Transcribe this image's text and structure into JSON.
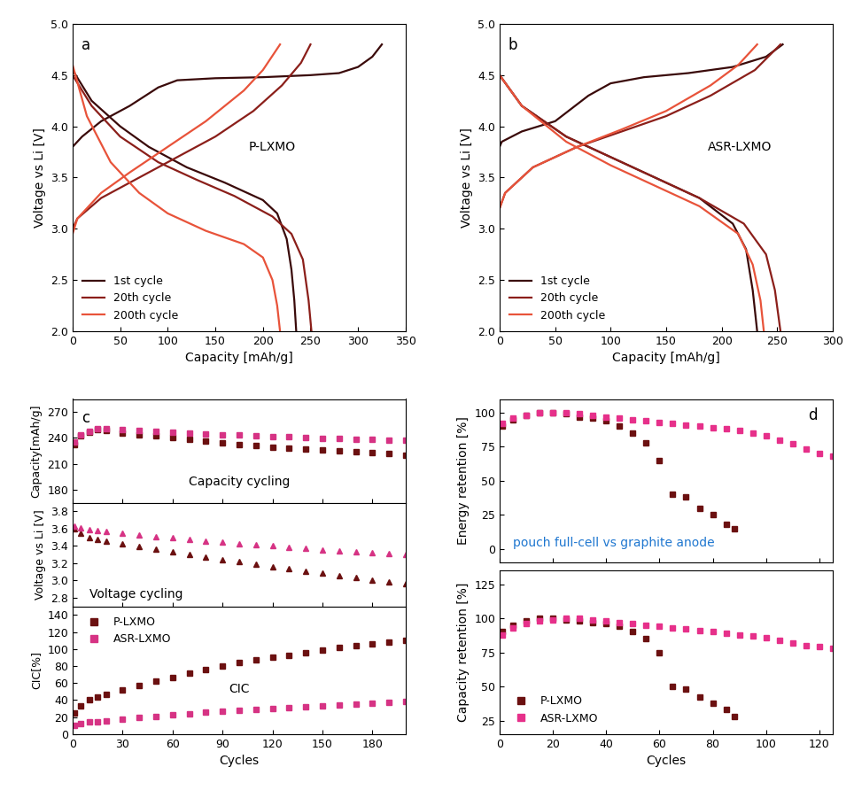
{
  "chart_data": [
    {
      "type": "line",
      "panel_label": "a",
      "annotations": [
        "P-LXMO"
      ],
      "x_label": "Capacity [mAh/g]",
      "y_label": "Voltage vs Li [V]",
      "xlim": [
        0,
        350
      ],
      "xticks": [
        0,
        50,
        100,
        150,
        200,
        250,
        300,
        350
      ],
      "ylim": [
        2.0,
        5.0
      ],
      "yticks": [
        2.0,
        2.5,
        3.0,
        3.5,
        4.0,
        4.5,
        5.0
      ],
      "legend": "lower left",
      "line_style": "solid",
      "series": [
        {
          "name": "1st cycle",
          "color": "#3a0a0a",
          "charge": {
            "x": [
              0,
              2,
              10,
              30,
              60,
              90,
              110,
              150,
              200,
              250,
              280,
              300,
              315,
              325
            ],
            "values": [
              3.8,
              3.82,
              3.9,
              4.05,
              4.2,
              4.38,
              4.45,
              4.47,
              4.48,
              4.5,
              4.52,
              4.58,
              4.68,
              4.8
            ]
          },
          "discharge": {
            "x": [
              0,
              20,
              50,
              80,
              120,
              160,
              200,
              215,
              225,
              230,
              233,
              235
            ],
            "values": [
              4.55,
              4.25,
              4.0,
              3.8,
              3.6,
              3.45,
              3.28,
              3.15,
              2.9,
              2.6,
              2.3,
              2.0
            ]
          }
        },
        {
          "name": "20th cycle",
          "color": "#8b1f1a",
          "charge": {
            "x": [
              0,
              5,
              30,
              70,
              110,
              150,
              190,
              220,
              240,
              250
            ],
            "values": [
              3.0,
              3.1,
              3.3,
              3.5,
              3.7,
              3.9,
              4.15,
              4.4,
              4.62,
              4.8
            ]
          },
          "discharge": {
            "x": [
              0,
              20,
              50,
              90,
              130,
              170,
              210,
              230,
              242,
              248,
              251
            ],
            "values": [
              4.5,
              4.2,
              3.9,
              3.65,
              3.48,
              3.32,
              3.12,
              2.95,
              2.7,
              2.3,
              2.0
            ]
          }
        },
        {
          "name": "200th cycle",
          "color": "#e8533a",
          "charge": {
            "x": [
              0,
              5,
              30,
              60,
              100,
              140,
              180,
              200,
              218
            ],
            "values": [
              2.95,
              3.1,
              3.35,
              3.55,
              3.8,
              4.05,
              4.35,
              4.55,
              4.8
            ]
          },
          "discharge": {
            "x": [
              0,
              15,
              40,
              70,
              100,
              140,
              180,
              200,
              210,
              215,
              218
            ],
            "values": [
              4.6,
              4.1,
              3.65,
              3.35,
              3.15,
              2.98,
              2.85,
              2.72,
              2.5,
              2.25,
              2.0
            ]
          }
        }
      ]
    },
    {
      "type": "line",
      "panel_label": "b",
      "annotations": [
        "ASR-LXMO"
      ],
      "x_label": "Capacity [mAh/g]",
      "y_label": "Voltage vs Li [V]",
      "xlim": [
        0,
        300
      ],
      "xticks": [
        0,
        50,
        100,
        150,
        200,
        250,
        300
      ],
      "ylim": [
        2.0,
        5.0
      ],
      "yticks": [
        2.0,
        2.5,
        3.0,
        3.5,
        4.0,
        4.5,
        5.0
      ],
      "legend": "lower left",
      "line_style": "solid",
      "series": [
        {
          "name": "1st cycle",
          "color": "#3a0a0a",
          "charge": {
            "x": [
              0,
              2,
              20,
              50,
              80,
              100,
              130,
              170,
              210,
              240,
              255
            ],
            "values": [
              3.8,
              3.85,
              3.95,
              4.05,
              4.3,
              4.42,
              4.48,
              4.52,
              4.58,
              4.68,
              4.8
            ]
          },
          "discharge": {
            "x": [
              0,
              20,
              60,
              100,
              140,
              180,
              210,
              222,
              228,
              232
            ],
            "values": [
              4.5,
              4.2,
              3.9,
              3.7,
              3.5,
              3.3,
              3.05,
              2.8,
              2.4,
              2.0
            ]
          }
        },
        {
          "name": "20th cycle",
          "color": "#8b1f1a",
          "charge": {
            "x": [
              0,
              5,
              30,
              70,
              110,
              150,
              190,
              230,
              253
            ],
            "values": [
              3.2,
              3.35,
              3.6,
              3.8,
              3.95,
              4.1,
              4.3,
              4.55,
              4.8
            ]
          },
          "discharge": {
            "x": [
              0,
              20,
              60,
              100,
              140,
              180,
              220,
              240,
              248,
              253
            ],
            "values": [
              4.5,
              4.2,
              3.9,
              3.7,
              3.5,
              3.3,
              3.05,
              2.75,
              2.4,
              2.0
            ]
          }
        },
        {
          "name": "200th cycle",
          "color": "#e8533a",
          "charge": {
            "x": [
              0,
              5,
              30,
              70,
              110,
              150,
              190,
              215,
              232
            ],
            "values": [
              3.2,
              3.35,
              3.6,
              3.8,
              3.97,
              4.15,
              4.4,
              4.6,
              4.8
            ]
          },
          "discharge": {
            "x": [
              0,
              20,
              60,
              100,
              140,
              180,
              215,
              228,
              235,
              238
            ],
            "values": [
              4.5,
              4.2,
              3.85,
              3.62,
              3.42,
              3.22,
              2.95,
              2.65,
              2.3,
              2.0
            ]
          }
        }
      ]
    },
    {
      "type": "scatter",
      "panel_label": "c",
      "annotations": [
        "Capacity cycling"
      ],
      "y_label": "Capacity[mAh/g]",
      "xlim": [
        0,
        200
      ],
      "xticks": [
        0,
        30,
        60,
        90,
        120,
        150,
        180
      ],
      "ylim": [
        165,
        285
      ],
      "yticks": [
        180,
        210,
        240,
        270
      ],
      "marker": "square",
      "x": [
        1,
        5,
        10,
        15,
        20,
        30,
        40,
        50,
        60,
        70,
        80,
        90,
        100,
        110,
        120,
        130,
        140,
        150,
        160,
        170,
        180,
        190,
        200
      ],
      "series": [
        {
          "name": "P-LXMO",
          "color": "#6b1010",
          "values": [
            232,
            242,
            247,
            250,
            249,
            246,
            244,
            242,
            240,
            238,
            236,
            234,
            232,
            231,
            229,
            228,
            227,
            226,
            225,
            224,
            223,
            222,
            220
          ]
        },
        {
          "name": "ASR-LXMO",
          "color": "#d63384",
          "values": [
            235,
            243,
            248,
            251,
            251,
            250,
            249,
            248,
            247,
            246,
            245,
            244,
            243,
            242,
            241,
            241,
            240,
            239,
            239,
            238,
            238,
            237,
            237
          ]
        }
      ]
    },
    {
      "type": "scatter",
      "annotations": [
        "Voltage cycling"
      ],
      "y_label": "Voltage vs Li [V]",
      "xlim": [
        0,
        200
      ],
      "xticks": [
        0,
        30,
        60,
        90,
        120,
        150,
        180
      ],
      "ylim": [
        2.7,
        3.9
      ],
      "yticks": [
        2.8,
        3.0,
        3.2,
        3.4,
        3.6,
        3.8
      ],
      "marker": "triangle",
      "x": [
        1,
        5,
        10,
        15,
        20,
        30,
        40,
        50,
        60,
        70,
        80,
        90,
        100,
        110,
        120,
        130,
        140,
        150,
        160,
        170,
        180,
        190,
        200
      ],
      "series": [
        {
          "name": "P-LXMO",
          "color": "#6b1010",
          "values": [
            3.6,
            3.55,
            3.5,
            3.48,
            3.46,
            3.42,
            3.39,
            3.36,
            3.33,
            3.3,
            3.27,
            3.24,
            3.22,
            3.19,
            3.16,
            3.14,
            3.11,
            3.09,
            3.06,
            3.04,
            3.01,
            2.98,
            2.96
          ]
        },
        {
          "name": "ASR-LXMO",
          "color": "#d63384",
          "values": [
            3.63,
            3.61,
            3.59,
            3.58,
            3.57,
            3.55,
            3.53,
            3.51,
            3.5,
            3.48,
            3.46,
            3.45,
            3.43,
            3.41,
            3.4,
            3.38,
            3.37,
            3.35,
            3.34,
            3.33,
            3.32,
            3.31,
            3.3
          ]
        }
      ]
    },
    {
      "type": "scatter",
      "annotations": [
        "CIC"
      ],
      "x_label": "Cycles",
      "y_label": "CIC[%]",
      "xlim": [
        0,
        200
      ],
      "xticks": [
        0,
        30,
        60,
        90,
        120,
        150,
        180
      ],
      "ylim": [
        0,
        150
      ],
      "yticks": [
        0,
        20,
        40,
        60,
        80,
        100,
        120,
        140
      ],
      "marker": "square",
      "legend": "upper left",
      "x": [
        1,
        5,
        10,
        15,
        20,
        30,
        40,
        50,
        60,
        70,
        80,
        90,
        100,
        110,
        120,
        130,
        140,
        150,
        160,
        170,
        180,
        190,
        200
      ],
      "series": [
        {
          "name": "P-LXMO",
          "color": "#6b1010",
          "values": [
            25,
            33,
            40,
            44,
            47,
            52,
            57,
            62,
            67,
            72,
            76,
            80,
            84,
            87,
            90,
            93,
            96,
            99,
            102,
            104,
            106,
            108,
            110
          ]
        },
        {
          "name": "ASR-LXMO",
          "color": "#d63384",
          "values": [
            10,
            12,
            14,
            15,
            16,
            18,
            20,
            21,
            23,
            24,
            26,
            27,
            28,
            29,
            30,
            31,
            32,
            33,
            34,
            35,
            36,
            37,
            38
          ]
        }
      ]
    },
    {
      "type": "scatter",
      "panel_label": "d",
      "annotations": [
        "pouch full-cell vs graphite anode"
      ],
      "y_label": "Energy retention [%]",
      "xlim": [
        0,
        125
      ],
      "xticks": [
        0,
        20,
        40,
        60,
        80,
        100,
        120
      ],
      "ylim": [
        -10,
        110
      ],
      "yticks": [
        0,
        25,
        50,
        75,
        100
      ],
      "marker": "square",
      "series": [
        {
          "name": "P-LXMO",
          "color": "#6b1010",
          "x": [
            1,
            5,
            10,
            15,
            20,
            25,
            30,
            35,
            40,
            45,
            50,
            55,
            60,
            65,
            70,
            75,
            80,
            85,
            88
          ],
          "values": [
            90,
            95,
            98,
            100,
            100,
            99,
            97,
            96,
            94,
            90,
            85,
            78,
            65,
            40,
            38,
            30,
            25,
            18,
            15
          ]
        },
        {
          "name": "ASR-LXMO",
          "color": "#e6308a",
          "x": [
            1,
            5,
            10,
            15,
            20,
            25,
            30,
            35,
            40,
            45,
            50,
            55,
            60,
            65,
            70,
            75,
            80,
            85,
            90,
            95,
            100,
            105,
            110,
            115,
            120,
            125
          ],
          "values": [
            92,
            96,
            98,
            100,
            100,
            100,
            99,
            98,
            97,
            96,
            95,
            94,
            93,
            92,
            91,
            90,
            89,
            88,
            87,
            85,
            83,
            80,
            77,
            73,
            70,
            68
          ]
        }
      ]
    },
    {
      "type": "scatter",
      "x_label": "Cycles",
      "y_label": "Capacity retention [%]",
      "xlim": [
        0,
        125
      ],
      "xticks": [
        0,
        20,
        40,
        60,
        80,
        100,
        120
      ],
      "ylim": [
        15,
        135
      ],
      "yticks": [
        25,
        50,
        75,
        100,
        125
      ],
      "marker": "square",
      "legend": "lower left",
      "series": [
        {
          "name": "P-LXMO",
          "color": "#6b1010",
          "x": [
            1,
            5,
            10,
            15,
            20,
            25,
            30,
            35,
            40,
            45,
            50,
            55,
            60,
            65,
            70,
            75,
            80,
            85,
            88
          ],
          "values": [
            90,
            95,
            98,
            100,
            100,
            99,
            98,
            97,
            96,
            94,
            90,
            85,
            75,
            50,
            48,
            42,
            38,
            33,
            28
          ]
        },
        {
          "name": "ASR-LXMO",
          "color": "#e6308a",
          "x": [
            1,
            5,
            10,
            15,
            20,
            25,
            30,
            35,
            40,
            45,
            50,
            55,
            60,
            65,
            70,
            75,
            80,
            85,
            90,
            95,
            100,
            105,
            110,
            115,
            120,
            125
          ],
          "values": [
            88,
            93,
            96,
            98,
            99,
            100,
            100,
            99,
            98,
            97,
            96,
            95,
            94,
            93,
            92,
            91,
            90,
            89,
            88,
            87,
            86,
            84,
            82,
            80,
            79,
            78
          ]
        }
      ]
    }
  ]
}
